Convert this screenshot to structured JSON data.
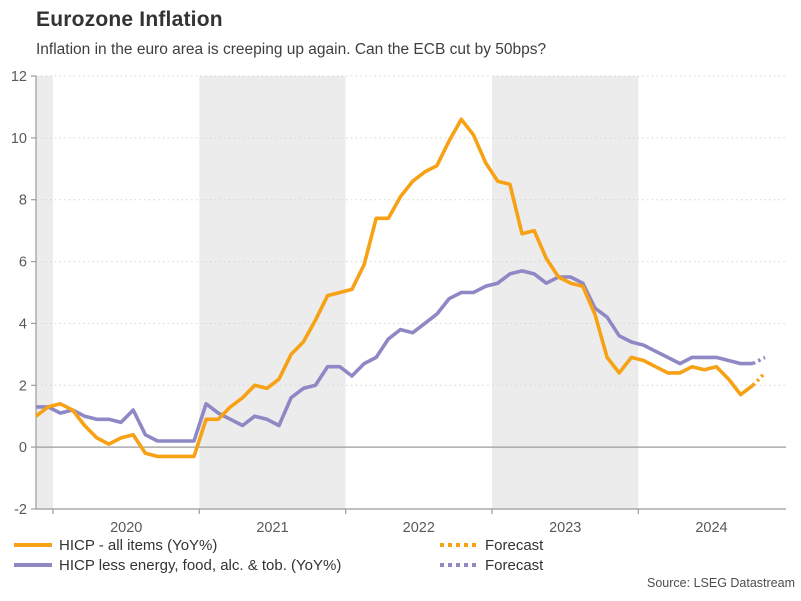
{
  "header": {
    "title": "Eurozone Inflation",
    "subtitle": "Inflation in the euro area is creeping up again. Can the ECB cut by 50bps?"
  },
  "source": "Source: LSEG Datastream",
  "colors": {
    "headline_orange": "#F7A115",
    "core_purple": "#8E88C5",
    "band_gray": "#ECECEC",
    "grid_gray": "#D4D4D4",
    "axis_gray": "#9B9B9B",
    "text_dark": "#333333",
    "text_axis": "#595959"
  },
  "legend": [
    {
      "label": "HICP - all items (YoY%)",
      "color": "#F7A115",
      "style": "solid"
    },
    {
      "label": "HICP less energy, food, alc. & tob. (YoY%)",
      "color": "#8E88C5",
      "style": "solid"
    },
    {
      "label": "Forecast",
      "color": "#F7A115",
      "style": "dotted"
    },
    {
      "label": "Forecast",
      "color": "#8E88C5",
      "style": "dotted"
    }
  ],
  "chart_data": {
    "type": "line",
    "title": "Eurozone Inflation",
    "subtitle": "Inflation in the euro area is creeping up again. Can the ECB cut by 50bps?",
    "x_start_month": "2019-11",
    "x_frequency": "monthly",
    "x_tick_years": [
      2020,
      2021,
      2022,
      2023,
      2024
    ],
    "y_ticks": [
      -2,
      0,
      2,
      4,
      6,
      8,
      10,
      12
    ],
    "ylim": [
      -2,
      12
    ],
    "grid": "dotted-horizontal",
    "legend_position": "bottom",
    "shaded_bands": [
      [
        2019.87,
        2020
      ],
      [
        2021,
        2022
      ],
      [
        2023,
        2024
      ]
    ],
    "band_color": "#ECECEC",
    "grid_color": "#D4D4D4",
    "axis_color": "#9B9B9B",
    "series": [
      {
        "name": "HICP - all items (YoY%)",
        "color": "#F7A115",
        "values": [
          1.0,
          1.3,
          1.4,
          1.2,
          0.7,
          0.3,
          0.1,
          0.3,
          0.4,
          -0.2,
          -0.3,
          -0.3,
          -0.3,
          -0.3,
          0.9,
          0.9,
          1.3,
          1.6,
          2.0,
          1.9,
          2.2,
          3.0,
          3.4,
          4.1,
          4.9,
          5.0,
          5.1,
          5.9,
          7.4,
          7.4,
          8.1,
          8.6,
          8.9,
          9.1,
          9.9,
          10.6,
          10.1,
          9.2,
          8.6,
          8.5,
          6.9,
          7.0,
          6.1,
          5.5,
          5.3,
          5.2,
          4.3,
          2.9,
          2.4,
          2.9,
          2.8,
          2.6,
          2.4,
          2.4,
          2.6,
          2.5,
          2.6,
          2.2,
          1.7,
          2.0
        ],
        "forecast_months": [
          "2024-11"
        ],
        "forecast": [
          2.4
        ]
      },
      {
        "name": "HICP less energy, food, alc. & tob. (YoY%)",
        "color": "#8E88C5",
        "values": [
          1.3,
          1.3,
          1.1,
          1.2,
          1.0,
          0.9,
          0.9,
          0.8,
          1.2,
          0.4,
          0.2,
          0.2,
          0.2,
          0.2,
          1.4,
          1.1,
          0.9,
          0.7,
          1.0,
          0.9,
          0.7,
          1.6,
          1.9,
          2.0,
          2.6,
          2.6,
          2.3,
          2.7,
          2.9,
          3.5,
          3.8,
          3.7,
          4.0,
          4.3,
          4.8,
          5.0,
          5.0,
          5.2,
          5.3,
          5.6,
          5.7,
          5.6,
          5.3,
          5.5,
          5.5,
          5.3,
          4.5,
          4.2,
          3.6,
          3.4,
          3.3,
          3.1,
          2.9,
          2.7,
          2.9,
          2.9,
          2.9,
          2.8,
          2.7,
          2.7
        ],
        "forecast_months": [
          "2024-11"
        ],
        "forecast": [
          2.9
        ]
      }
    ]
  }
}
